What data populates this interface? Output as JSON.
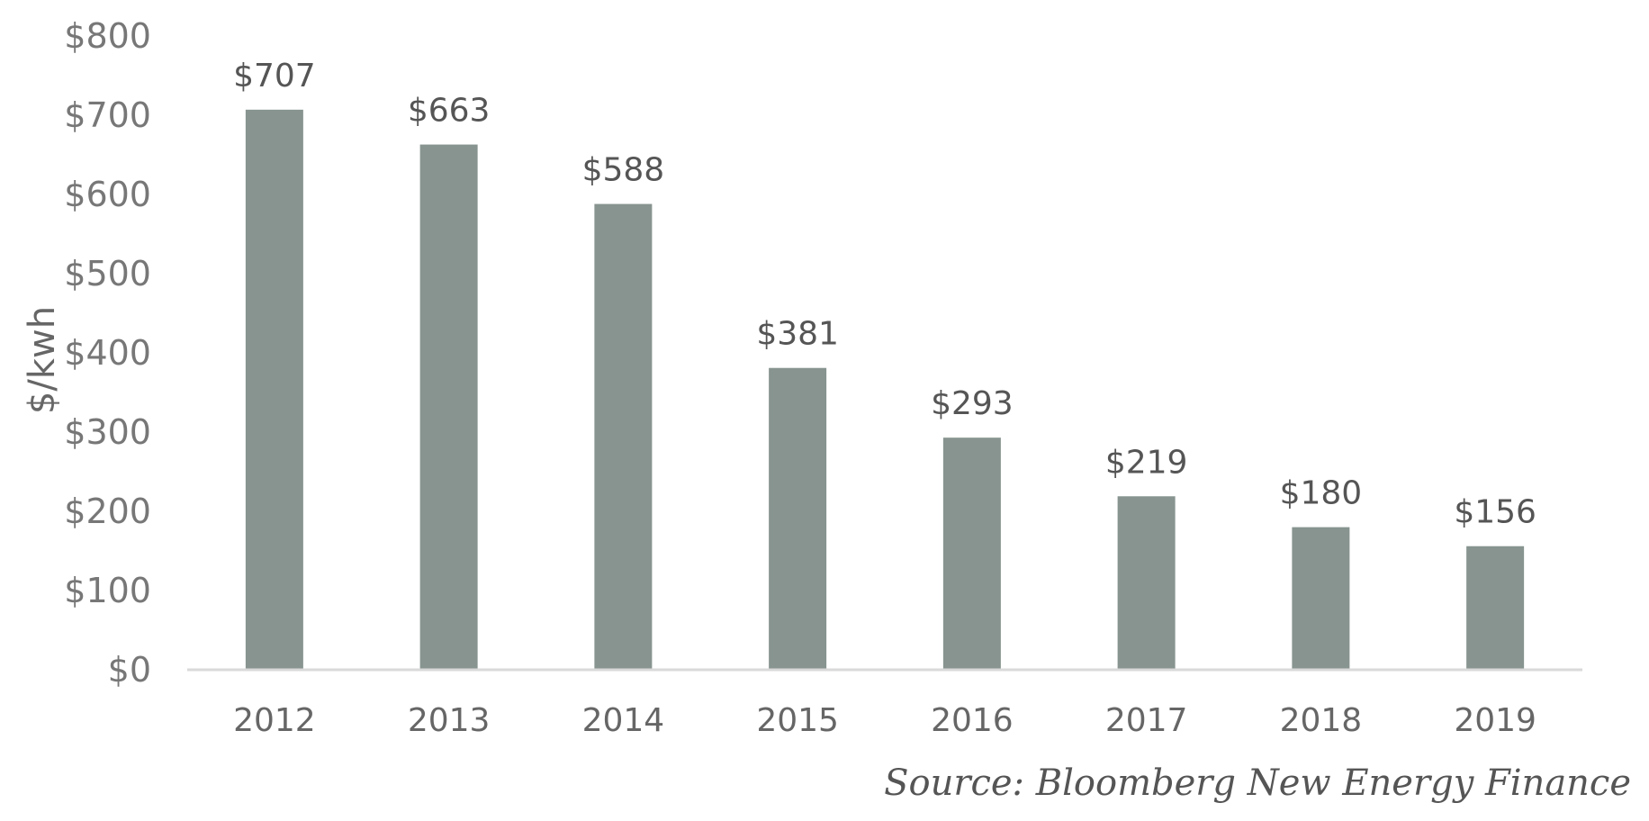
{
  "chart_data": {
    "type": "bar",
    "categories": [
      "2012",
      "2013",
      "2014",
      "2015",
      "2016",
      "2017",
      "2018",
      "2019"
    ],
    "values": [
      707,
      663,
      588,
      381,
      293,
      219,
      180,
      156
    ],
    "data_labels": [
      "$707",
      "$663",
      "$588",
      "$381",
      "$293",
      "$219",
      "$180",
      "$156"
    ],
    "ylabel": "$/kwh",
    "ylim": [
      0,
      800
    ],
    "yticks": [
      0,
      100,
      200,
      300,
      400,
      500,
      600,
      700,
      800
    ],
    "ytick_labels": [
      "$0",
      "$100",
      "$200",
      "$300",
      "$400",
      "$500",
      "$600",
      "$700",
      "$800"
    ],
    "grid": false,
    "legend": "none",
    "bar_color": "#87948F",
    "axis_color": "#D9D9D9",
    "source": "Source: Bloomberg New Energy Finance"
  }
}
